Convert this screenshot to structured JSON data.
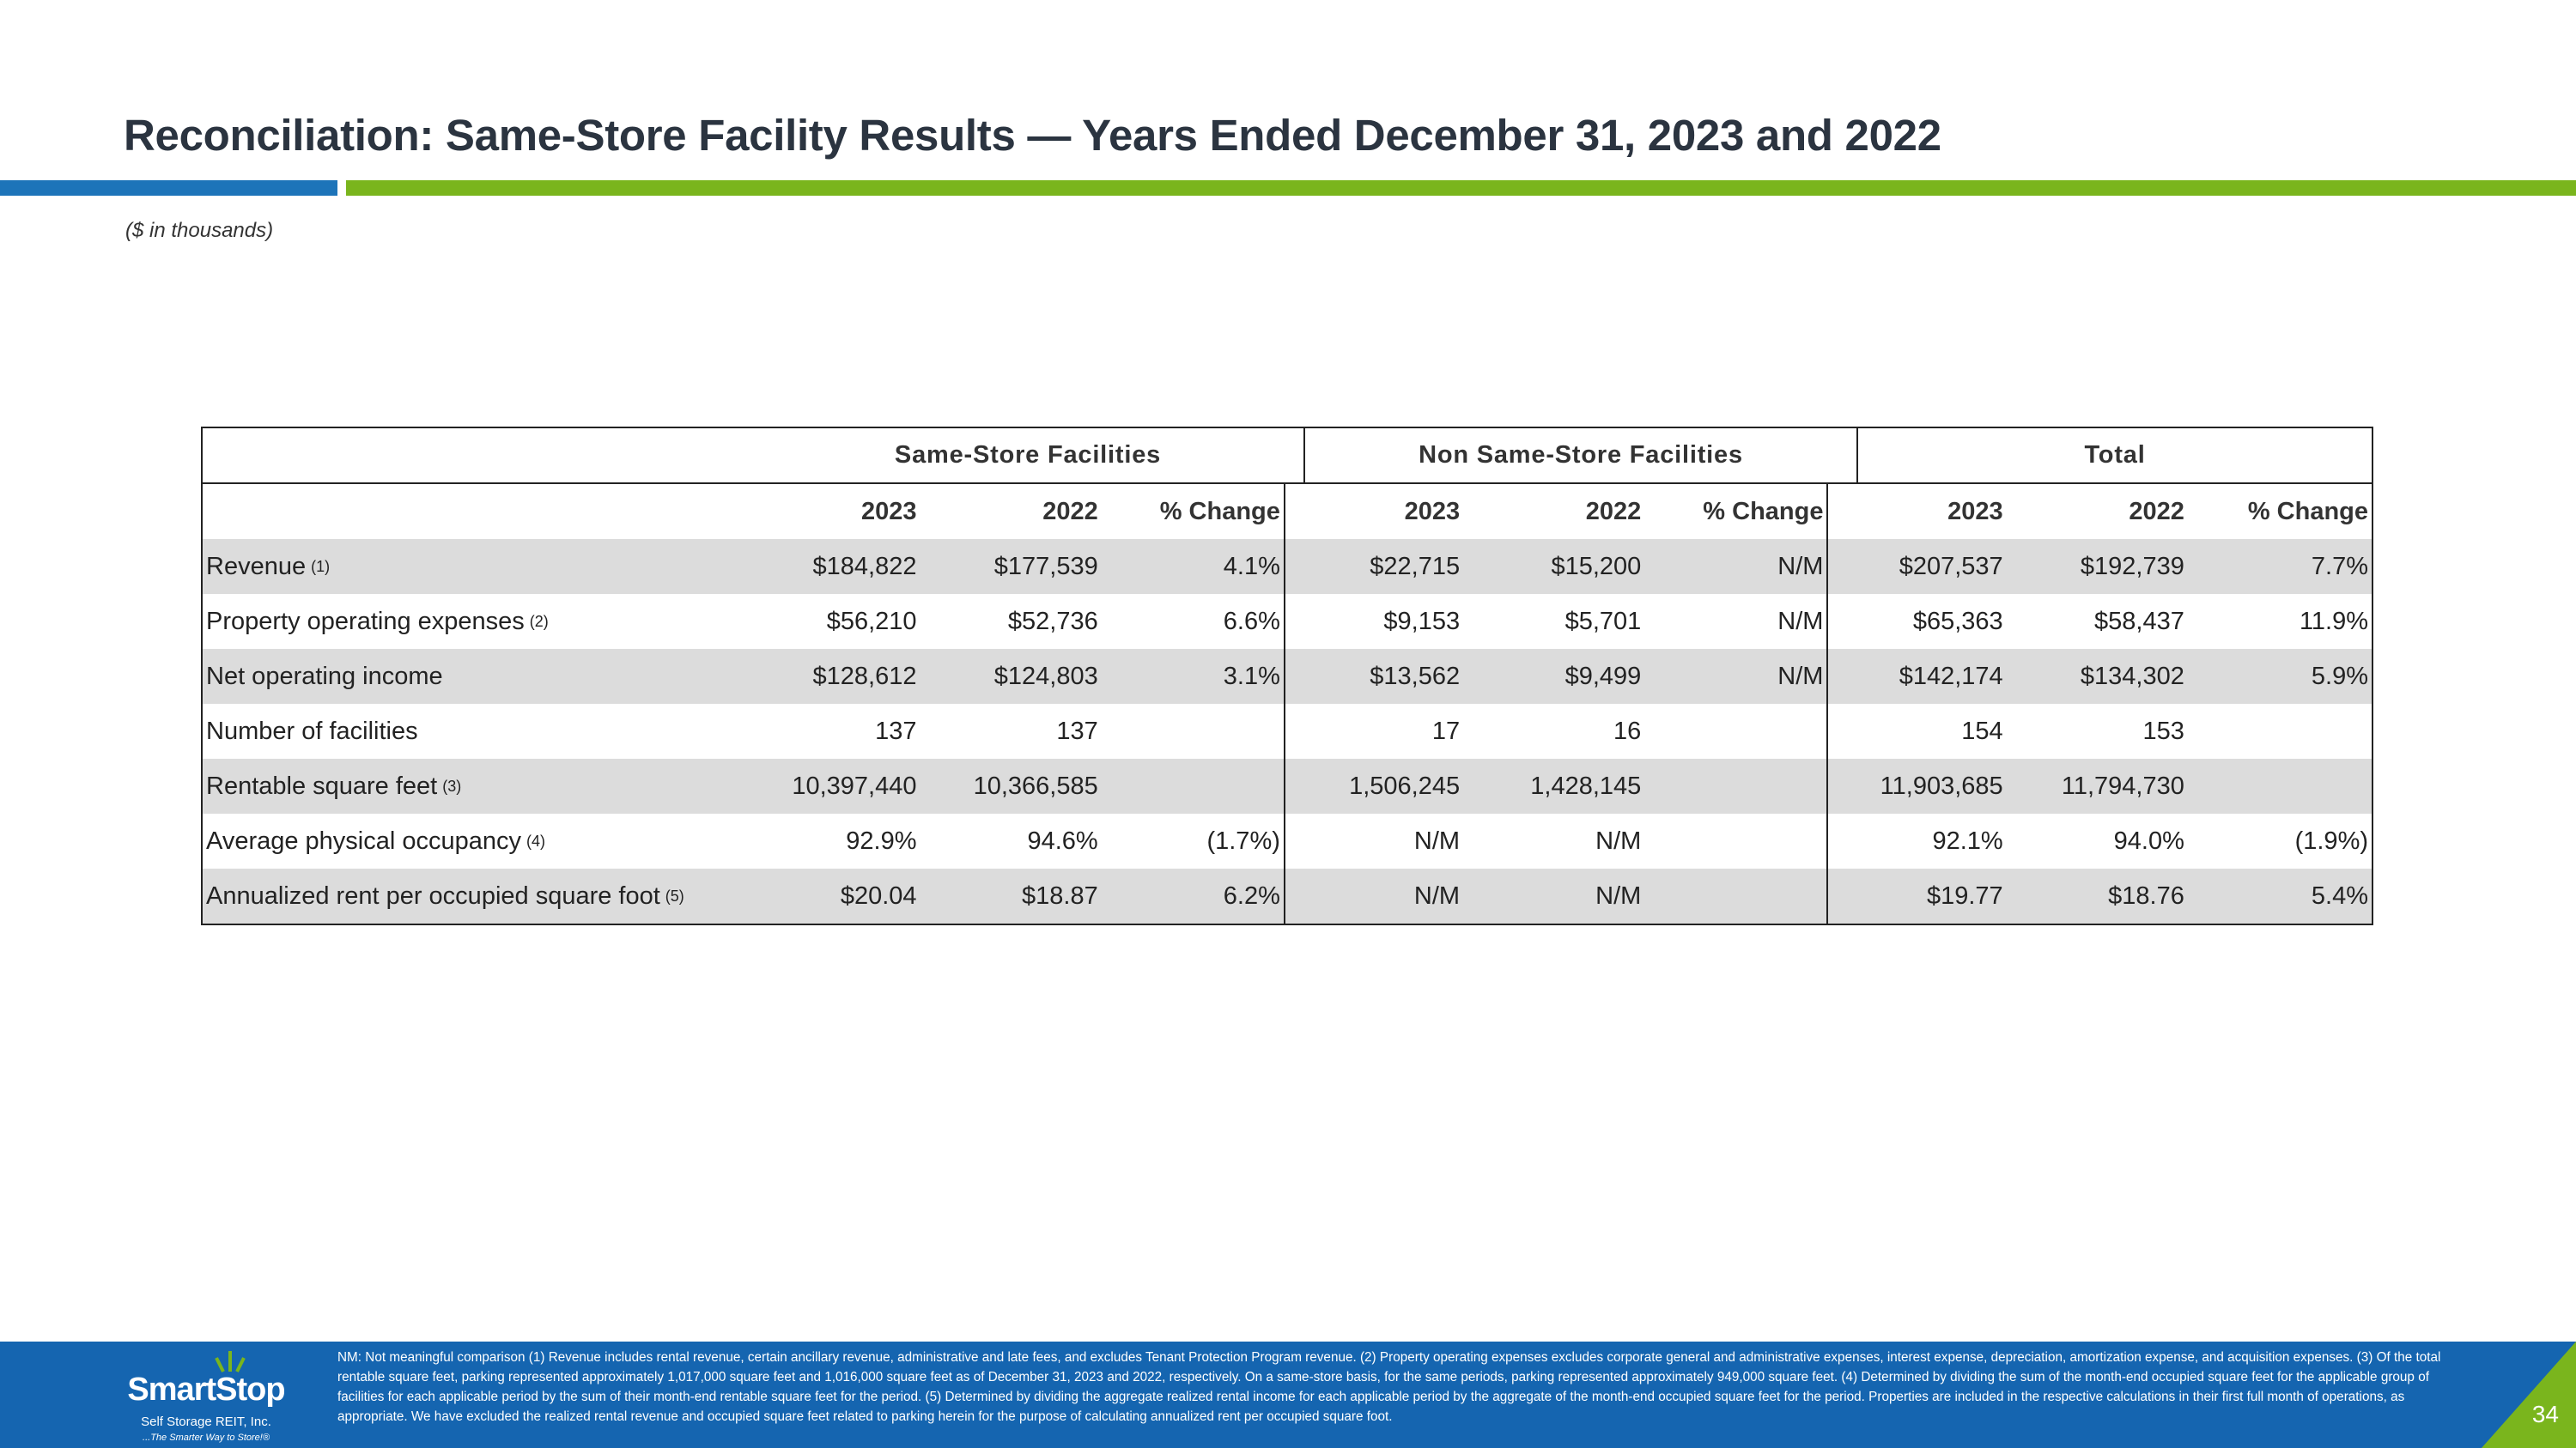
{
  "header": {
    "title": "Reconciliation: Same-Store Facility Results — Years Ended December 31, 2023 and 2022",
    "subtitle": "($ in thousands)"
  },
  "table": {
    "groups": [
      "Same-Store Facilities",
      "Non Same-Store Facilities",
      "Total"
    ],
    "columns": [
      "2023",
      "2022",
      "% Change",
      "2023",
      "2022",
      "% Change",
      "2023",
      "2022",
      "% Change"
    ],
    "rows": [
      {
        "label": "Revenue",
        "note": "(1)",
        "values": [
          "$184,822",
          "$177,539",
          "4.1%",
          "$22,715",
          "$15,200",
          "N/M",
          "$207,537",
          "$192,739",
          "7.7%"
        ]
      },
      {
        "label": "Property operating expenses",
        "note": "(2)",
        "values": [
          "$56,210",
          "$52,736",
          "6.6%",
          "$9,153",
          "$5,701",
          "N/M",
          "$65,363",
          "$58,437",
          "11.9%"
        ]
      },
      {
        "label": "Net operating income",
        "note": "",
        "values": [
          "$128,612",
          "$124,803",
          "3.1%",
          "$13,562",
          "$9,499",
          "N/M",
          "$142,174",
          "$134,302",
          "5.9%"
        ]
      },
      {
        "label": "Number of facilities",
        "note": "",
        "values": [
          "137",
          "137",
          "",
          "17",
          "16",
          "",
          "154",
          "153",
          ""
        ]
      },
      {
        "label": "Rentable square feet",
        "note": "(3)",
        "values": [
          "10,397,440",
          "10,366,585",
          "",
          "1,506,245",
          "1,428,145",
          "",
          "11,903,685",
          "11,794,730",
          ""
        ]
      },
      {
        "label": "Average physical occupancy",
        "note": "(4)",
        "values": [
          "92.9%",
          "94.6%",
          "(1.7%)",
          "N/M",
          "N/M",
          "",
          "92.1%",
          "94.0%",
          "(1.9%)"
        ]
      },
      {
        "label": "Annualized rent per occupied square foot",
        "note": "(5)",
        "values": [
          "$20.04",
          "$18.87",
          "6.2%",
          "N/M",
          "N/M",
          "",
          "$19.77",
          "$18.76",
          "5.4%"
        ]
      }
    ]
  },
  "footer": {
    "logo_name": "SmartStop",
    "logo_sub": "Self Storage REIT, Inc.",
    "logo_tagline": "...The Smarter Way to Store!®",
    "footnote": "NM: Not meaningful comparison  (1) Revenue includes rental revenue, certain ancillary revenue, administrative and late fees, and excludes Tenant Protection Program revenue. (2) Property operating expenses excludes corporate general and administrative expenses, interest expense, depreciation, amortization expense, and acquisition expenses. (3) Of the total rentable square feet, parking represented approximately 1,017,000 square feet and 1,016,000 square feet as of December 31, 2023 and 2022, respectively. On a same-store basis, for the same periods, parking represented approximately 949,000 square feet. (4) Determined by dividing the sum of the month-end occupied square feet for the applicable group of facilities for each applicable period by the sum of their month-end rentable square feet for the period. (5) Determined by dividing the aggregate realized rental income for each applicable period by the aggregate of the month-end occupied square feet for the period. Properties are included in the respective calculations in their first full month of operations, as appropriate. We have excluded the realized rental revenue and occupied square feet related to parking herein for the purpose of calculating annualized rent per occupied square foot.",
    "page_number": "34"
  },
  "colors": {
    "blue": "#1d74b9",
    "green": "#7ab51d",
    "footer_blue": "#1565b0",
    "row_shade": "#dcdcdc"
  }
}
